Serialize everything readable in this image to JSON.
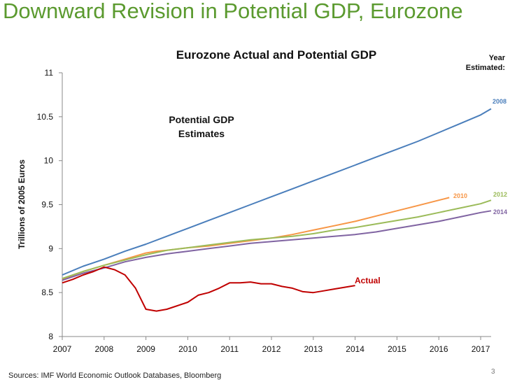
{
  "slide": {
    "title": "Downward Revision in Potential GDP, Eurozone",
    "source": "Sources: IMF World Economic Outlook Databases, Bloomberg",
    "page_number": "3"
  },
  "chart_data": {
    "type": "line",
    "title": "Eurozone Actual and Potential GDP",
    "ylabel": "Trillions of 2005 Euros",
    "xlabel": "",
    "xlim": [
      2007,
      2017.25
    ],
    "ylim": [
      8,
      11
    ],
    "x_ticks": [
      "2007",
      "2008",
      "2009",
      "2010",
      "2011",
      "2012",
      "2013",
      "2014",
      "2015",
      "2016",
      "2017"
    ],
    "y_ticks": [
      "8",
      "8.5",
      "9",
      "9.5",
      "10",
      "10.5",
      "11"
    ],
    "legend_title": "Year Estimated:",
    "annotation": "Potential GDP Estimates",
    "grid": false,
    "series": [
      {
        "name": "2008",
        "color": "#4a7ebb",
        "x": [
          2007,
          2007.5,
          2008,
          2008.5,
          2009,
          2009.5,
          2010,
          2010.5,
          2011,
          2011.5,
          2012,
          2012.5,
          2013,
          2013.5,
          2014,
          2014.5,
          2015,
          2015.5,
          2016,
          2016.5,
          2017,
          2017.25
        ],
        "y": [
          8.7,
          8.8,
          8.88,
          8.97,
          9.05,
          9.14,
          9.23,
          9.32,
          9.41,
          9.5,
          9.59,
          9.68,
          9.77,
          9.86,
          9.95,
          10.04,
          10.13,
          10.22,
          10.32,
          10.42,
          10.52,
          10.59
        ]
      },
      {
        "name": "2010",
        "color": "#f79646",
        "x": [
          2007,
          2007.5,
          2008,
          2008.5,
          2009,
          2009.25,
          2009.5,
          2010,
          2010.5,
          2011,
          2011.5,
          2012,
          2012.5,
          2013,
          2013.5,
          2014,
          2014.5,
          2015,
          2015.5,
          2016,
          2016.25
        ],
        "y": [
          8.65,
          8.74,
          8.81,
          8.88,
          8.95,
          8.97,
          8.98,
          9.01,
          9.03,
          9.06,
          9.09,
          9.12,
          9.16,
          9.21,
          9.26,
          9.31,
          9.37,
          9.43,
          9.49,
          9.55,
          9.58
        ]
      },
      {
        "name": "2012",
        "color": "#9bbb59",
        "x": [
          2007,
          2007.5,
          2008,
          2008.5,
          2009,
          2009.5,
          2010,
          2010.5,
          2011,
          2011.5,
          2012,
          2012.5,
          2013,
          2013.5,
          2014,
          2014.5,
          2015,
          2015.5,
          2016,
          2016.5,
          2017,
          2017.25
        ],
        "y": [
          8.66,
          8.74,
          8.81,
          8.87,
          8.93,
          8.98,
          9.01,
          9.04,
          9.07,
          9.1,
          9.12,
          9.14,
          9.17,
          9.21,
          9.24,
          9.28,
          9.32,
          9.36,
          9.41,
          9.46,
          9.51,
          9.55
        ]
      },
      {
        "name": "2014",
        "color": "#8064a2",
        "x": [
          2007,
          2007.5,
          2008,
          2008.5,
          2009,
          2009.5,
          2010,
          2010.5,
          2011,
          2011.5,
          2012,
          2012.5,
          2013,
          2013.5,
          2014,
          2014.5,
          2015,
          2015.5,
          2016,
          2016.5,
          2017,
          2017.25
        ],
        "y": [
          8.64,
          8.72,
          8.78,
          8.85,
          8.9,
          8.94,
          8.97,
          9.0,
          9.03,
          9.06,
          9.08,
          9.1,
          9.12,
          9.14,
          9.16,
          9.19,
          9.23,
          9.27,
          9.31,
          9.36,
          9.41,
          9.43
        ]
      },
      {
        "name": "Actual",
        "color": "#c00000",
        "x": [
          2007,
          2007.25,
          2007.5,
          2007.75,
          2008,
          2008.25,
          2008.5,
          2008.75,
          2009,
          2009.25,
          2009.5,
          2009.75,
          2010,
          2010.25,
          2010.5,
          2010.75,
          2011,
          2011.25,
          2011.5,
          2011.75,
          2012,
          2012.25,
          2012.5,
          2012.75,
          2013,
          2013.25,
          2013.5,
          2013.75,
          2014
        ],
        "y": [
          8.61,
          8.65,
          8.7,
          8.74,
          8.79,
          8.76,
          8.7,
          8.55,
          8.31,
          8.29,
          8.31,
          8.35,
          8.39,
          8.47,
          8.5,
          8.55,
          8.61,
          8.61,
          8.62,
          8.6,
          8.6,
          8.57,
          8.55,
          8.51,
          8.5,
          8.52,
          8.54,
          8.56,
          8.58
        ]
      }
    ]
  }
}
